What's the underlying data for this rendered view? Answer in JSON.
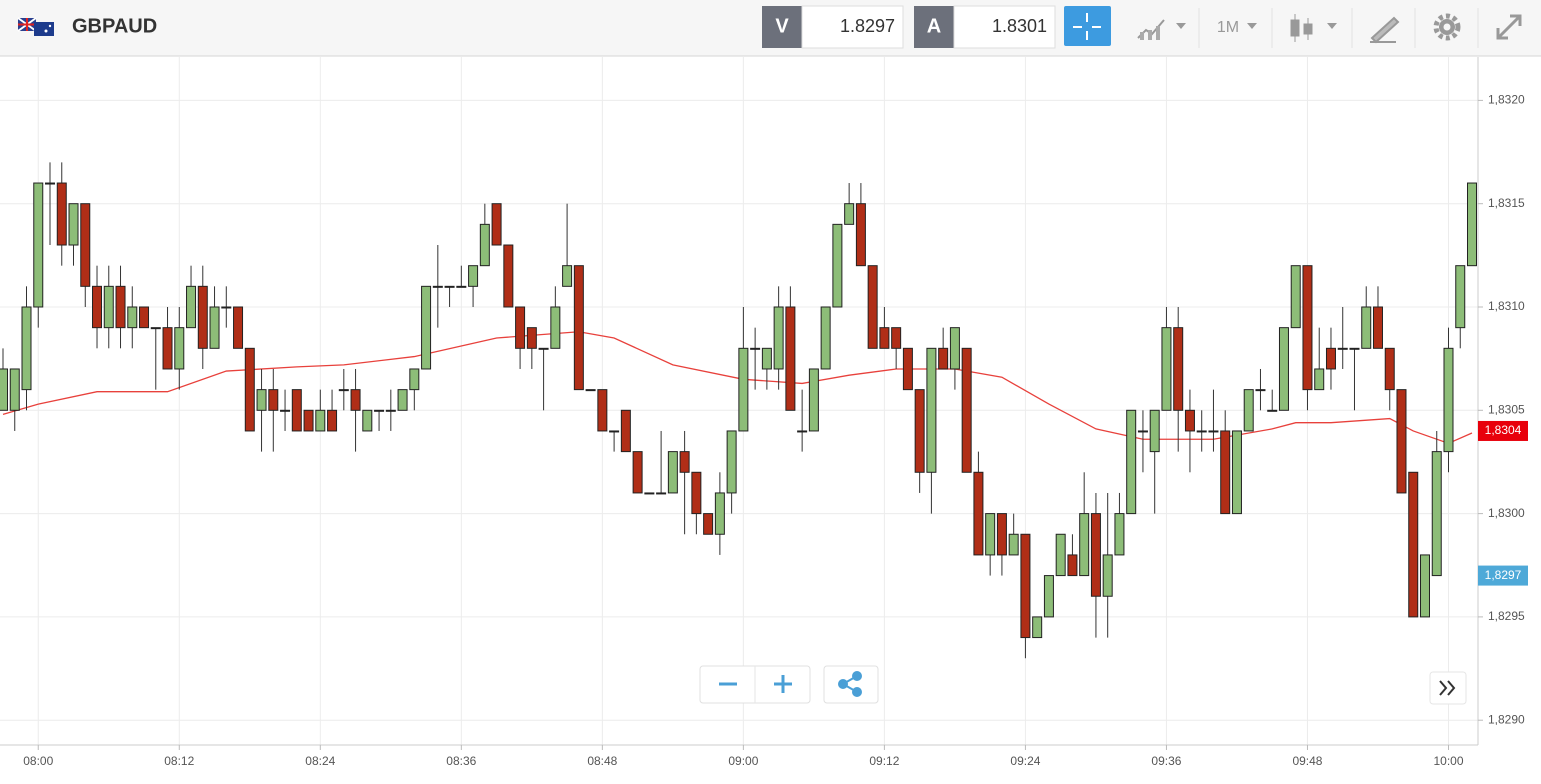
{
  "toolbar": {
    "symbol": "GBPAUD",
    "sell_label": "V",
    "sell_price": "1.8297",
    "buy_label": "A",
    "buy_price": "1.8301",
    "timeframe": "1M"
  },
  "chart_data": {
    "type": "candlestick",
    "x": [
      "07:57",
      "07:58",
      "07:59",
      "08:00",
      "08:01",
      "08:02",
      "08:03",
      "08:04",
      "08:05",
      "08:06",
      "08:07",
      "08:08",
      "08:09",
      "08:10",
      "08:11",
      "08:12",
      "08:13",
      "08:14",
      "08:15",
      "08:16",
      "08:17",
      "08:18",
      "08:19",
      "08:20",
      "08:21",
      "08:22",
      "08:23",
      "08:24",
      "08:25",
      "08:26",
      "08:27",
      "08:28",
      "08:29",
      "08:30",
      "08:31",
      "08:32",
      "08:33",
      "08:34",
      "08:35",
      "08:36",
      "08:37",
      "08:38",
      "08:39",
      "08:40",
      "08:41",
      "08:42",
      "08:43",
      "08:44",
      "08:45",
      "08:46",
      "08:47",
      "08:48",
      "08:49",
      "08:50",
      "08:51",
      "08:52",
      "08:53",
      "08:54",
      "08:55",
      "08:56",
      "08:57",
      "08:58",
      "08:59",
      "09:00",
      "09:01",
      "09:02",
      "09:03",
      "09:04",
      "09:05",
      "09:06",
      "09:07",
      "09:08",
      "09:09",
      "09:10",
      "09:11",
      "09:12",
      "09:13",
      "09:14",
      "09:15",
      "09:16",
      "09:17",
      "09:18",
      "09:19",
      "09:20",
      "09:21",
      "09:22",
      "09:23",
      "09:24",
      "09:25",
      "09:26",
      "09:27",
      "09:28",
      "09:29",
      "09:30",
      "09:31",
      "09:32",
      "09:33",
      "09:34",
      "09:35",
      "09:36",
      "09:37",
      "09:38",
      "09:39",
      "09:40",
      "09:41",
      "09:42",
      "09:43",
      "09:44",
      "09:45",
      "09:46",
      "09:47",
      "09:48",
      "09:49",
      "09:50",
      "09:51",
      "09:52",
      "09:53",
      "09:54",
      "09:55",
      "09:56",
      "09:57",
      "09:58",
      "09:59",
      "10:00",
      "10:01",
      "10:02"
    ],
    "open": [
      1.8305,
      1.8305,
      1.8306,
      1.831,
      1.8316,
      1.8316,
      1.8313,
      1.8315,
      1.8311,
      1.8309,
      1.8311,
      1.8309,
      1.831,
      1.8309,
      1.8309,
      1.8307,
      1.8309,
      1.8311,
      1.8308,
      1.831,
      1.831,
      1.8308,
      1.8305,
      1.8306,
      1.8305,
      1.8306,
      1.8305,
      1.8304,
      1.8305,
      1.8306,
      1.8306,
      1.8304,
      1.8305,
      1.8305,
      1.8305,
      1.8306,
      1.8307,
      1.8311,
      1.8311,
      1.8311,
      1.8311,
      1.8312,
      1.8315,
      1.8313,
      1.831,
      1.8309,
      1.8308,
      1.8308,
      1.8311,
      1.8312,
      1.8306,
      1.8306,
      1.8304,
      1.8305,
      1.8303,
      1.8301,
      1.8301,
      1.8301,
      1.8303,
      1.8302,
      1.83,
      1.8299,
      1.8301,
      1.8304,
      1.8308,
      1.8307,
      1.8307,
      1.831,
      1.8304,
      1.8304,
      1.8307,
      1.831,
      1.8314,
      1.8315,
      1.8312,
      1.8309,
      1.8309,
      1.8308,
      1.8306,
      1.8302,
      1.8308,
      1.8307,
      1.8308,
      1.8302,
      1.8298,
      1.83,
      1.8298,
      1.8299,
      1.8294,
      1.8295,
      1.8297,
      1.8298,
      1.8297,
      1.83,
      1.8296,
      1.8298,
      1.83,
      1.8304,
      1.8303,
      1.8305,
      1.8309,
      1.8305,
      1.8304,
      1.8304,
      1.8304,
      1.83,
      1.8304,
      1.8306,
      1.8305,
      1.8305,
      1.8309,
      1.8312,
      1.8306,
      1.8308,
      1.8308,
      1.8308,
      1.8308,
      1.831,
      1.8308,
      1.8306,
      1.8302,
      1.8295,
      1.8297,
      1.8303,
      1.8309,
      1.8312
    ],
    "high": [
      1.8308,
      1.8307,
      1.8311,
      1.8316,
      1.8317,
      1.8317,
      1.8315,
      1.8315,
      1.8312,
      1.8312,
      1.8312,
      1.8311,
      1.831,
      1.8309,
      1.831,
      1.831,
      1.8312,
      1.8312,
      1.8311,
      1.8311,
      1.831,
      1.8308,
      1.8307,
      1.8307,
      1.8306,
      1.8306,
      1.8305,
      1.8306,
      1.8306,
      1.8307,
      1.8307,
      1.8305,
      1.8305,
      1.8306,
      1.8306,
      1.8307,
      1.8311,
      1.8313,
      1.8311,
      1.8312,
      1.8312,
      1.8315,
      1.8315,
      1.8313,
      1.831,
      1.8309,
      1.8308,
      1.8311,
      1.8315,
      1.8312,
      1.8306,
      1.8306,
      1.8304,
      1.8305,
      1.8303,
      1.8301,
      1.8304,
      1.8303,
      1.8304,
      1.8302,
      1.83,
      1.8302,
      1.8304,
      1.831,
      1.8309,
      1.8308,
      1.8311,
      1.8311,
      1.8306,
      1.8307,
      1.831,
      1.8314,
      1.8316,
      1.8316,
      1.8312,
      1.831,
      1.8309,
      1.8308,
      1.8306,
      1.8308,
      1.8309,
      1.8309,
      1.8308,
      1.8303,
      1.83,
      1.83,
      1.83,
      1.8299,
      1.8295,
      1.8297,
      1.8299,
      1.8299,
      1.8302,
      1.8301,
      1.8301,
      1.8301,
      1.8305,
      1.8305,
      1.8305,
      1.831,
      1.831,
      1.8306,
      1.8305,
      1.8306,
      1.8305,
      1.8304,
      1.8306,
      1.8307,
      1.8306,
      1.8309,
      1.8312,
      1.8312,
      1.8309,
      1.8309,
      1.831,
      1.8308,
      1.8311,
      1.8311,
      1.8308,
      1.8306,
      1.8302,
      1.8298,
      1.8304,
      1.8309,
      1.8312,
      1.8316
    ],
    "low": [
      1.8305,
      1.8304,
      1.8305,
      1.8309,
      1.8313,
      1.8312,
      1.8312,
      1.831,
      1.8308,
      1.8308,
      1.8308,
      1.8308,
      1.8309,
      1.8306,
      1.8307,
      1.8306,
      1.8309,
      1.8307,
      1.8308,
      1.8309,
      1.8308,
      1.8304,
      1.8303,
      1.8303,
      1.8304,
      1.8304,
      1.8304,
      1.8304,
      1.8304,
      1.8305,
      1.8303,
      1.8304,
      1.8304,
      1.8304,
      1.8305,
      1.8305,
      1.8307,
      1.8309,
      1.831,
      1.8311,
      1.831,
      1.8312,
      1.8313,
      1.831,
      1.8307,
      1.8307,
      1.8305,
      1.8308,
      1.8311,
      1.8306,
      1.8306,
      1.8304,
      1.8303,
      1.8303,
      1.8301,
      1.8301,
      1.8301,
      1.8301,
      1.8299,
      1.8299,
      1.8299,
      1.8298,
      1.83,
      1.8304,
      1.8306,
      1.8306,
      1.8306,
      1.8305,
      1.8303,
      1.8304,
      1.8307,
      1.831,
      1.8314,
      1.8312,
      1.8308,
      1.8308,
      1.8307,
      1.8306,
      1.8301,
      1.83,
      1.8307,
      1.8306,
      1.8302,
      1.8298,
      1.8297,
      1.8297,
      1.8298,
      1.8293,
      1.8294,
      1.8295,
      1.8297,
      1.8297,
      1.8297,
      1.8294,
      1.8294,
      1.8298,
      1.83,
      1.8302,
      1.83,
      1.8305,
      1.8303,
      1.8302,
      1.8303,
      1.8303,
      1.83,
      1.83,
      1.8304,
      1.8305,
      1.8305,
      1.8305,
      1.8309,
      1.8305,
      1.8306,
      1.8306,
      1.8307,
      1.8305,
      1.8308,
      1.8308,
      1.8305,
      1.8301,
      1.8295,
      1.8295,
      1.8297,
      1.8302,
      1.8308,
      1.8312
    ],
    "close": [
      1.8307,
      1.8307,
      1.831,
      1.8316,
      1.8316,
      1.8313,
      1.8315,
      1.8311,
      1.8309,
      1.8311,
      1.8309,
      1.831,
      1.8309,
      1.8309,
      1.8307,
      1.8309,
      1.8311,
      1.8308,
      1.831,
      1.831,
      1.8308,
      1.8304,
      1.8306,
      1.8305,
      1.8305,
      1.8304,
      1.8304,
      1.8305,
      1.8304,
      1.8306,
      1.8305,
      1.8305,
      1.8305,
      1.8305,
      1.8306,
      1.8307,
      1.8311,
      1.8311,
      1.8311,
      1.8311,
      1.8312,
      1.8314,
      1.8313,
      1.831,
      1.8308,
      1.8308,
      1.8308,
      1.831,
      1.8312,
      1.8306,
      1.8306,
      1.8304,
      1.8304,
      1.8303,
      1.8301,
      1.8301,
      1.8301,
      1.8303,
      1.8302,
      1.83,
      1.8299,
      1.8301,
      1.8304,
      1.8308,
      1.8308,
      1.8308,
      1.831,
      1.8305,
      1.8304,
      1.8307,
      1.831,
      1.8314,
      1.8315,
      1.8312,
      1.8308,
      1.8308,
      1.8308,
      1.8306,
      1.8302,
      1.8308,
      1.8307,
      1.8309,
      1.8302,
      1.8298,
      1.83,
      1.8298,
      1.8299,
      1.8294,
      1.8295,
      1.8297,
      1.8299,
      1.8297,
      1.83,
      1.8296,
      1.8298,
      1.83,
      1.8305,
      1.8304,
      1.8305,
      1.8309,
      1.8305,
      1.8304,
      1.8304,
      1.8304,
      1.83,
      1.8304,
      1.8306,
      1.8306,
      1.8305,
      1.8309,
      1.8312,
      1.8306,
      1.8307,
      1.8307,
      1.8308,
      1.8308,
      1.831,
      1.8308,
      1.8306,
      1.8301,
      1.8295,
      1.8298,
      1.8303,
      1.8308,
      1.8312,
      1.8316
    ],
    "up_color": "#8dbd78",
    "down_color": "#b02e17",
    "overlay": {
      "type": "line",
      "color": "#e8413c",
      "x": [
        "07:57",
        "08:00",
        "08:05",
        "08:11",
        "08:16",
        "08:22",
        "08:26",
        "08:32",
        "08:39",
        "08:46",
        "08:49",
        "08:54",
        "09:00",
        "09:05",
        "09:09",
        "09:13",
        "09:18",
        "09:22",
        "09:26",
        "09:30",
        "09:34",
        "09:40",
        "09:45",
        "09:47",
        "09:50",
        "09:55",
        "09:57",
        "10:00",
        "10:02"
      ],
      "values": [
        1.83048,
        1.83053,
        1.83059,
        1.83059,
        1.83069,
        1.83071,
        1.83072,
        1.83076,
        1.83085,
        1.83088,
        1.83085,
        1.83072,
        1.83065,
        1.83063,
        1.83067,
        1.8307,
        1.8307,
        1.83066,
        1.83053,
        1.83041,
        1.83036,
        1.83036,
        1.83041,
        1.83044,
        1.83044,
        1.83046,
        1.8304,
        1.83034,
        1.83039
      ]
    },
    "xticks": [
      "08:00",
      "08:12",
      "08:24",
      "08:36",
      "08:48",
      "09:00",
      "09:12",
      "09:24",
      "09:36",
      "09:48",
      "10:00"
    ],
    "ylim": [
      1.82888,
      1.83221
    ],
    "yticks": [
      {
        "value": 1.829,
        "label": "1,8290"
      },
      {
        "value": 1.8295,
        "label": "1,8295"
      },
      {
        "value": 1.83,
        "label": "1,8300"
      },
      {
        "value": 1.8305,
        "label": "1,8305"
      },
      {
        "value": 1.831,
        "label": "1,8310"
      },
      {
        "value": 1.8315,
        "label": "1,8315"
      },
      {
        "value": 1.832,
        "label": "1,8320"
      }
    ],
    "grid": true,
    "price_markers": [
      {
        "value": 1.8304,
        "label": "1,8304",
        "color": "#e8000b"
      },
      {
        "value": 1.8297,
        "label": "1,8297",
        "color": "#4ea9d8"
      }
    ]
  }
}
